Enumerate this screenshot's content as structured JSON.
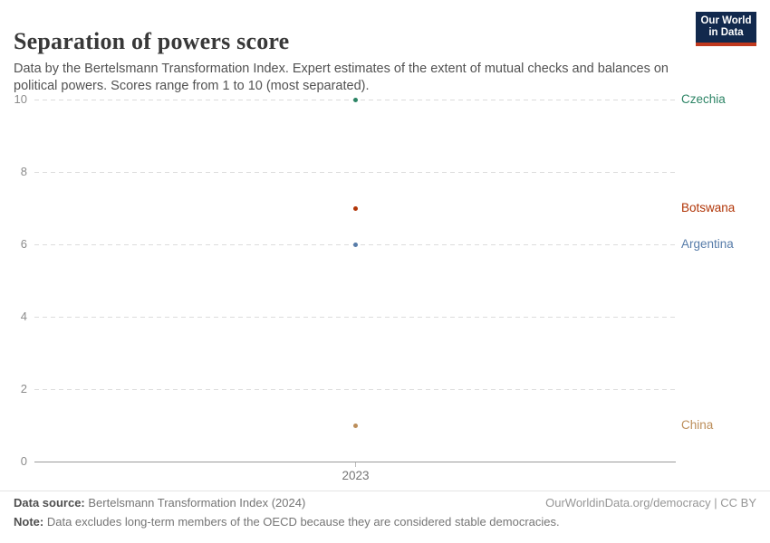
{
  "header": {
    "title": "Separation of powers score",
    "subtitle": "Data by the Bertelsmann Transformation Index. Expert estimates of the extent of mutual checks and balances on political powers. Scores range from 1 to 10 (most separated).",
    "logo": {
      "line1": "Our World",
      "line2": "in Data",
      "bg_color": "#12294d",
      "accent_color": "#c0391e"
    }
  },
  "chart_data": {
    "type": "scatter",
    "x": [
      2023
    ],
    "x_tick_label": "2023",
    "ylim": [
      0,
      10
    ],
    "yticks": [
      0,
      2,
      4,
      6,
      8,
      10
    ],
    "grid": "horizontal-dashed",
    "legend_position": "right-entity-labels",
    "series": [
      {
        "name": "Czechia",
        "value": 10,
        "color": "#2c8465"
      },
      {
        "name": "Botswana",
        "value": 7,
        "color": "#b13507"
      },
      {
        "name": "Argentina",
        "value": 6,
        "color": "#577ca9"
      },
      {
        "name": "China",
        "value": 1,
        "color": "#bc8e5a"
      }
    ]
  },
  "footer": {
    "data_source_label": "Data source:",
    "data_source_value": "Bertelsmann Transformation Index (2024)",
    "credit": "OurWorldinData.org/democracy | CC BY",
    "note_label": "Note:",
    "note_value": "Data excludes long-term members of the OECD because they are considered stable democracies."
  }
}
